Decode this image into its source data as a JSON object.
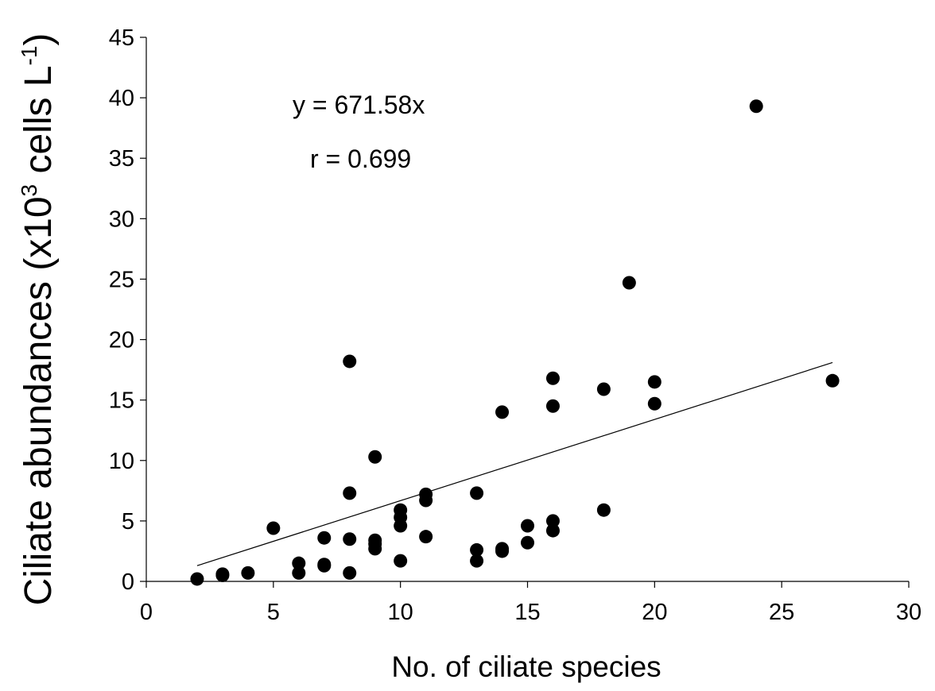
{
  "chart_data": {
    "type": "scatter",
    "title": "",
    "xlabel": "No. of ciliate species",
    "ylabel": {
      "main": "Ciliate abundances (x10",
      "exp": "3",
      "unit": " cells L",
      "unit_exp": "-1",
      "close": ")"
    },
    "xlim": [
      0,
      30
    ],
    "ylim": [
      0,
      45
    ],
    "xticks": [
      0,
      5,
      10,
      15,
      20,
      25,
      30
    ],
    "yticks": [
      0,
      5,
      10,
      15,
      20,
      25,
      30,
      35,
      40,
      45
    ],
    "grid": false,
    "legend": "none",
    "marker_color": "#000000",
    "series": [
      {
        "points": [
          [
            2,
            0.2
          ],
          [
            3,
            0.5
          ],
          [
            3,
            0.6
          ],
          [
            4,
            0.7
          ],
          [
            5,
            4.4
          ],
          [
            6,
            0.7
          ],
          [
            6,
            1.5
          ],
          [
            7,
            1.3
          ],
          [
            7,
            1.4
          ],
          [
            7,
            3.6
          ],
          [
            8,
            0.7
          ],
          [
            8,
            3.5
          ],
          [
            8,
            7.3
          ],
          [
            8,
            18.2
          ],
          [
            9,
            2.7
          ],
          [
            9,
            3.1
          ],
          [
            9,
            3.4
          ],
          [
            9,
            10.3
          ],
          [
            10,
            1.7
          ],
          [
            10,
            4.6
          ],
          [
            10,
            5.3
          ],
          [
            10,
            5.9
          ],
          [
            11,
            3.7
          ],
          [
            11,
            6.7
          ],
          [
            11,
            7.2
          ],
          [
            13,
            1.7
          ],
          [
            13,
            2.6
          ],
          [
            13,
            7.3
          ],
          [
            14,
            2.5
          ],
          [
            14,
            2.7
          ],
          [
            14,
            14.0
          ],
          [
            15,
            3.2
          ],
          [
            15,
            4.6
          ],
          [
            16,
            4.2
          ],
          [
            16,
            5.0
          ],
          [
            16,
            14.5
          ],
          [
            16,
            16.8
          ],
          [
            18,
            5.9
          ],
          [
            18,
            15.9
          ],
          [
            19,
            24.7
          ],
          [
            20,
            14.7
          ],
          [
            20,
            16.5
          ],
          [
            24,
            39.3
          ],
          [
            27,
            16.6
          ]
        ]
      }
    ],
    "trendline": {
      "equation": "y = 671.58x",
      "r_label": "r = 0.699",
      "from": [
        2,
        1.3
      ],
      "to": [
        27,
        18.1
      ]
    }
  }
}
